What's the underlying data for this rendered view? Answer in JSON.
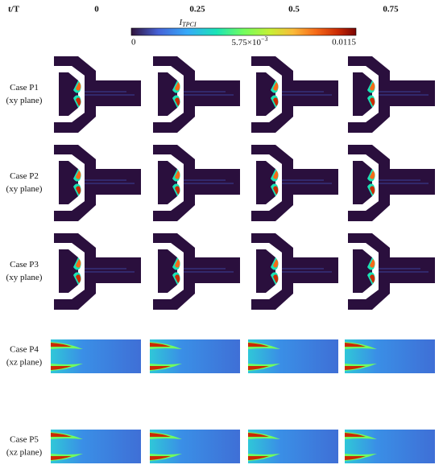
{
  "header": {
    "label": "t/T",
    "columns": [
      "0",
      "0.25",
      "0.5",
      "0.75"
    ]
  },
  "colorbar": {
    "title": "I",
    "title_sub": "TPCI",
    "labels": [
      "0",
      {
        "base": "5.75×10",
        "sup": "−3"
      },
      "0.0115"
    ]
  },
  "rows": [
    {
      "case": "Case P1",
      "plane": "(xy plane)"
    },
    {
      "case": "Case P2",
      "plane": "(xy plane)"
    },
    {
      "case": "Case P3",
      "plane": "(xy plane)"
    },
    {
      "case": "Case P4",
      "plane": "(xz plane)"
    },
    {
      "case": "Case P5",
      "plane": "(xz plane)"
    }
  ]
}
